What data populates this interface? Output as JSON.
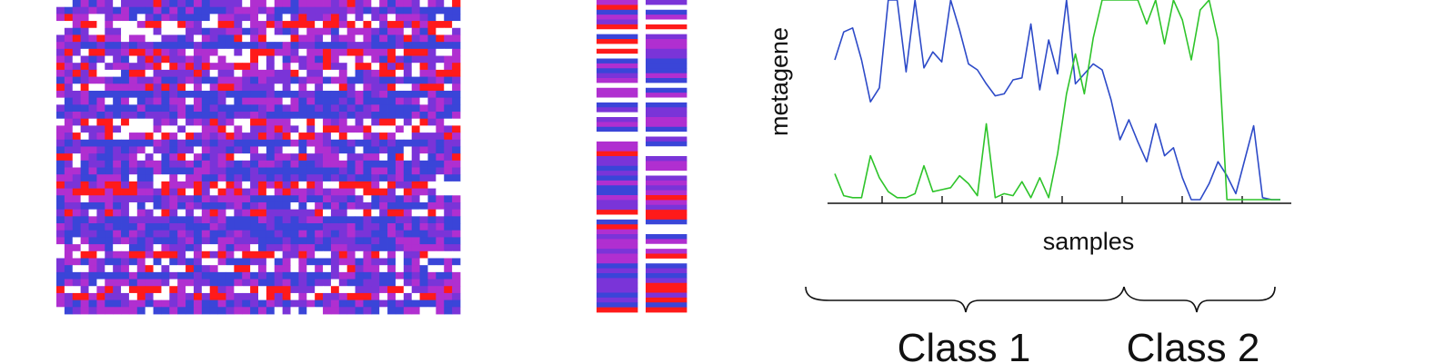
{
  "chart_data": [
    {
      "type": "heatmap",
      "rows": 45,
      "cols": 50,
      "palette": [
        "#3a45d8",
        "#7a34d8",
        "#b02fd0",
        "#ffffff",
        "#ff1a1a"
      ]
    },
    {
      "type": "heatmap",
      "rows": 64,
      "cols": 2,
      "palette": [
        "#3a45d8",
        "#7a34d8",
        "#b02fd0",
        "#ffffff",
        "#ff1a1a"
      ]
    },
    {
      "type": "line",
      "xlabel": "samples",
      "ylabel": "metagene",
      "x": [
        1,
        2,
        3,
        4,
        5,
        6,
        7,
        8,
        9,
        10,
        11,
        12,
        13,
        14,
        15,
        16,
        17,
        18,
        19,
        20,
        21,
        22,
        23,
        24,
        25,
        26,
        27,
        28,
        29,
        30,
        31,
        32,
        33,
        34,
        35,
        36,
        37,
        38,
        39,
        40,
        41,
        42,
        43,
        44,
        45,
        46,
        47,
        48,
        49,
        50,
        51
      ],
      "ylim": [
        0,
        1
      ],
      "series": [
        {
          "color": "#2d4ac8",
          "values": [
            0.7,
            0.84,
            0.86,
            0.7,
            0.49,
            0.56,
            1.0,
            1.0,
            0.64,
            1.0,
            0.66,
            0.74,
            0.69,
            1.0,
            0.85,
            0.68,
            0.65,
            0.58,
            0.52,
            0.53,
            0.6,
            0.61,
            0.88,
            0.55,
            0.8,
            0.63,
            1.0,
            0.58,
            0.63,
            0.68,
            0.65,
            0.5,
            0.3,
            0.4,
            0.29,
            0.19,
            0.38,
            0.22,
            0.26,
            0.11,
            0.0,
            0.0,
            0.08,
            0.19,
            0.12,
            0.03,
            0.2,
            0.37,
            0.01,
            0.0,
            0.0
          ]
        },
        {
          "color": "#2ec42a",
          "values": [
            0.13,
            0.02,
            0.01,
            0.01,
            0.22,
            0.11,
            0.04,
            0.01,
            0.01,
            0.03,
            0.17,
            0.04,
            0.05,
            0.06,
            0.12,
            0.08,
            0.02,
            0.38,
            0.01,
            0.03,
            0.02,
            0.09,
            0.01,
            0.11,
            0.01,
            0.23,
            0.53,
            0.73,
            0.53,
            0.81,
            1.0,
            1.0,
            1.0,
            1.0,
            1.0,
            0.88,
            1.0,
            0.78,
            1.0,
            0.9,
            0.7,
            0.95,
            1.0,
            0.8,
            0.0,
            0.0,
            0.0,
            0.0,
            0.0,
            0.0,
            0.0
          ]
        }
      ],
      "groups": [
        {
          "label": "Class 1"
        },
        {
          "label": "Class 2"
        }
      ]
    }
  ]
}
